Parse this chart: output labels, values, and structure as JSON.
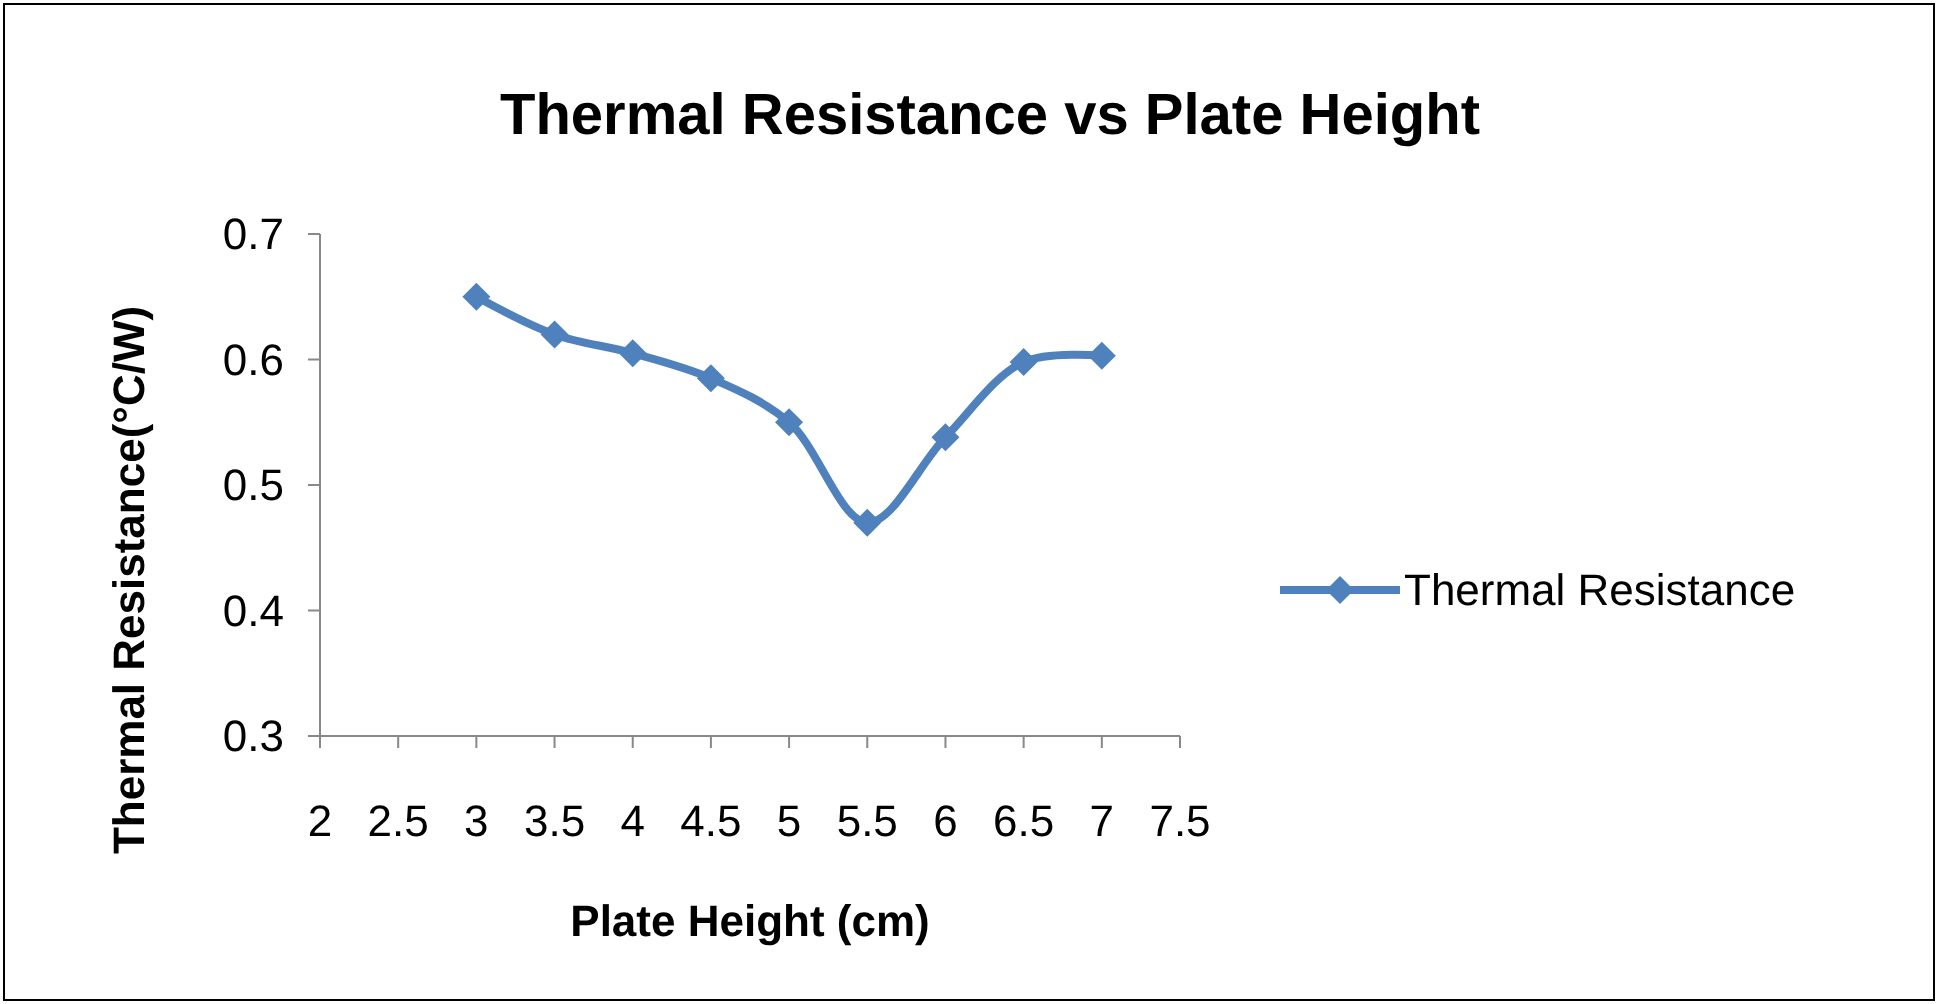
{
  "chart_data": {
    "type": "line",
    "title": "Thermal Resistance vs Plate Height",
    "xlabel": "Plate Height (cm)",
    "ylabel": "Thermal Resistance(°C/W)",
    "x": [
      3,
      3.5,
      4,
      4.5,
      5,
      5.5,
      6,
      6.5,
      7
    ],
    "series": [
      {
        "name": "Thermal Resistance",
        "color": "#4f81bd",
        "values": [
          0.65,
          0.62,
          0.605,
          0.585,
          0.55,
          0.47,
          0.538,
          0.598,
          0.603
        ]
      }
    ],
    "xlim": [
      2,
      7.5
    ],
    "xticks": [
      2,
      2.5,
      3,
      3.5,
      4,
      4.5,
      5,
      5.5,
      6,
      6.5,
      7,
      7.5
    ],
    "ylim": [
      0.3,
      0.7
    ],
    "yticks": [
      0.3,
      0.4,
      0.5,
      0.6,
      0.7
    ],
    "grid": false,
    "legend": "right",
    "marker": "diamond",
    "line_style": "solid"
  }
}
